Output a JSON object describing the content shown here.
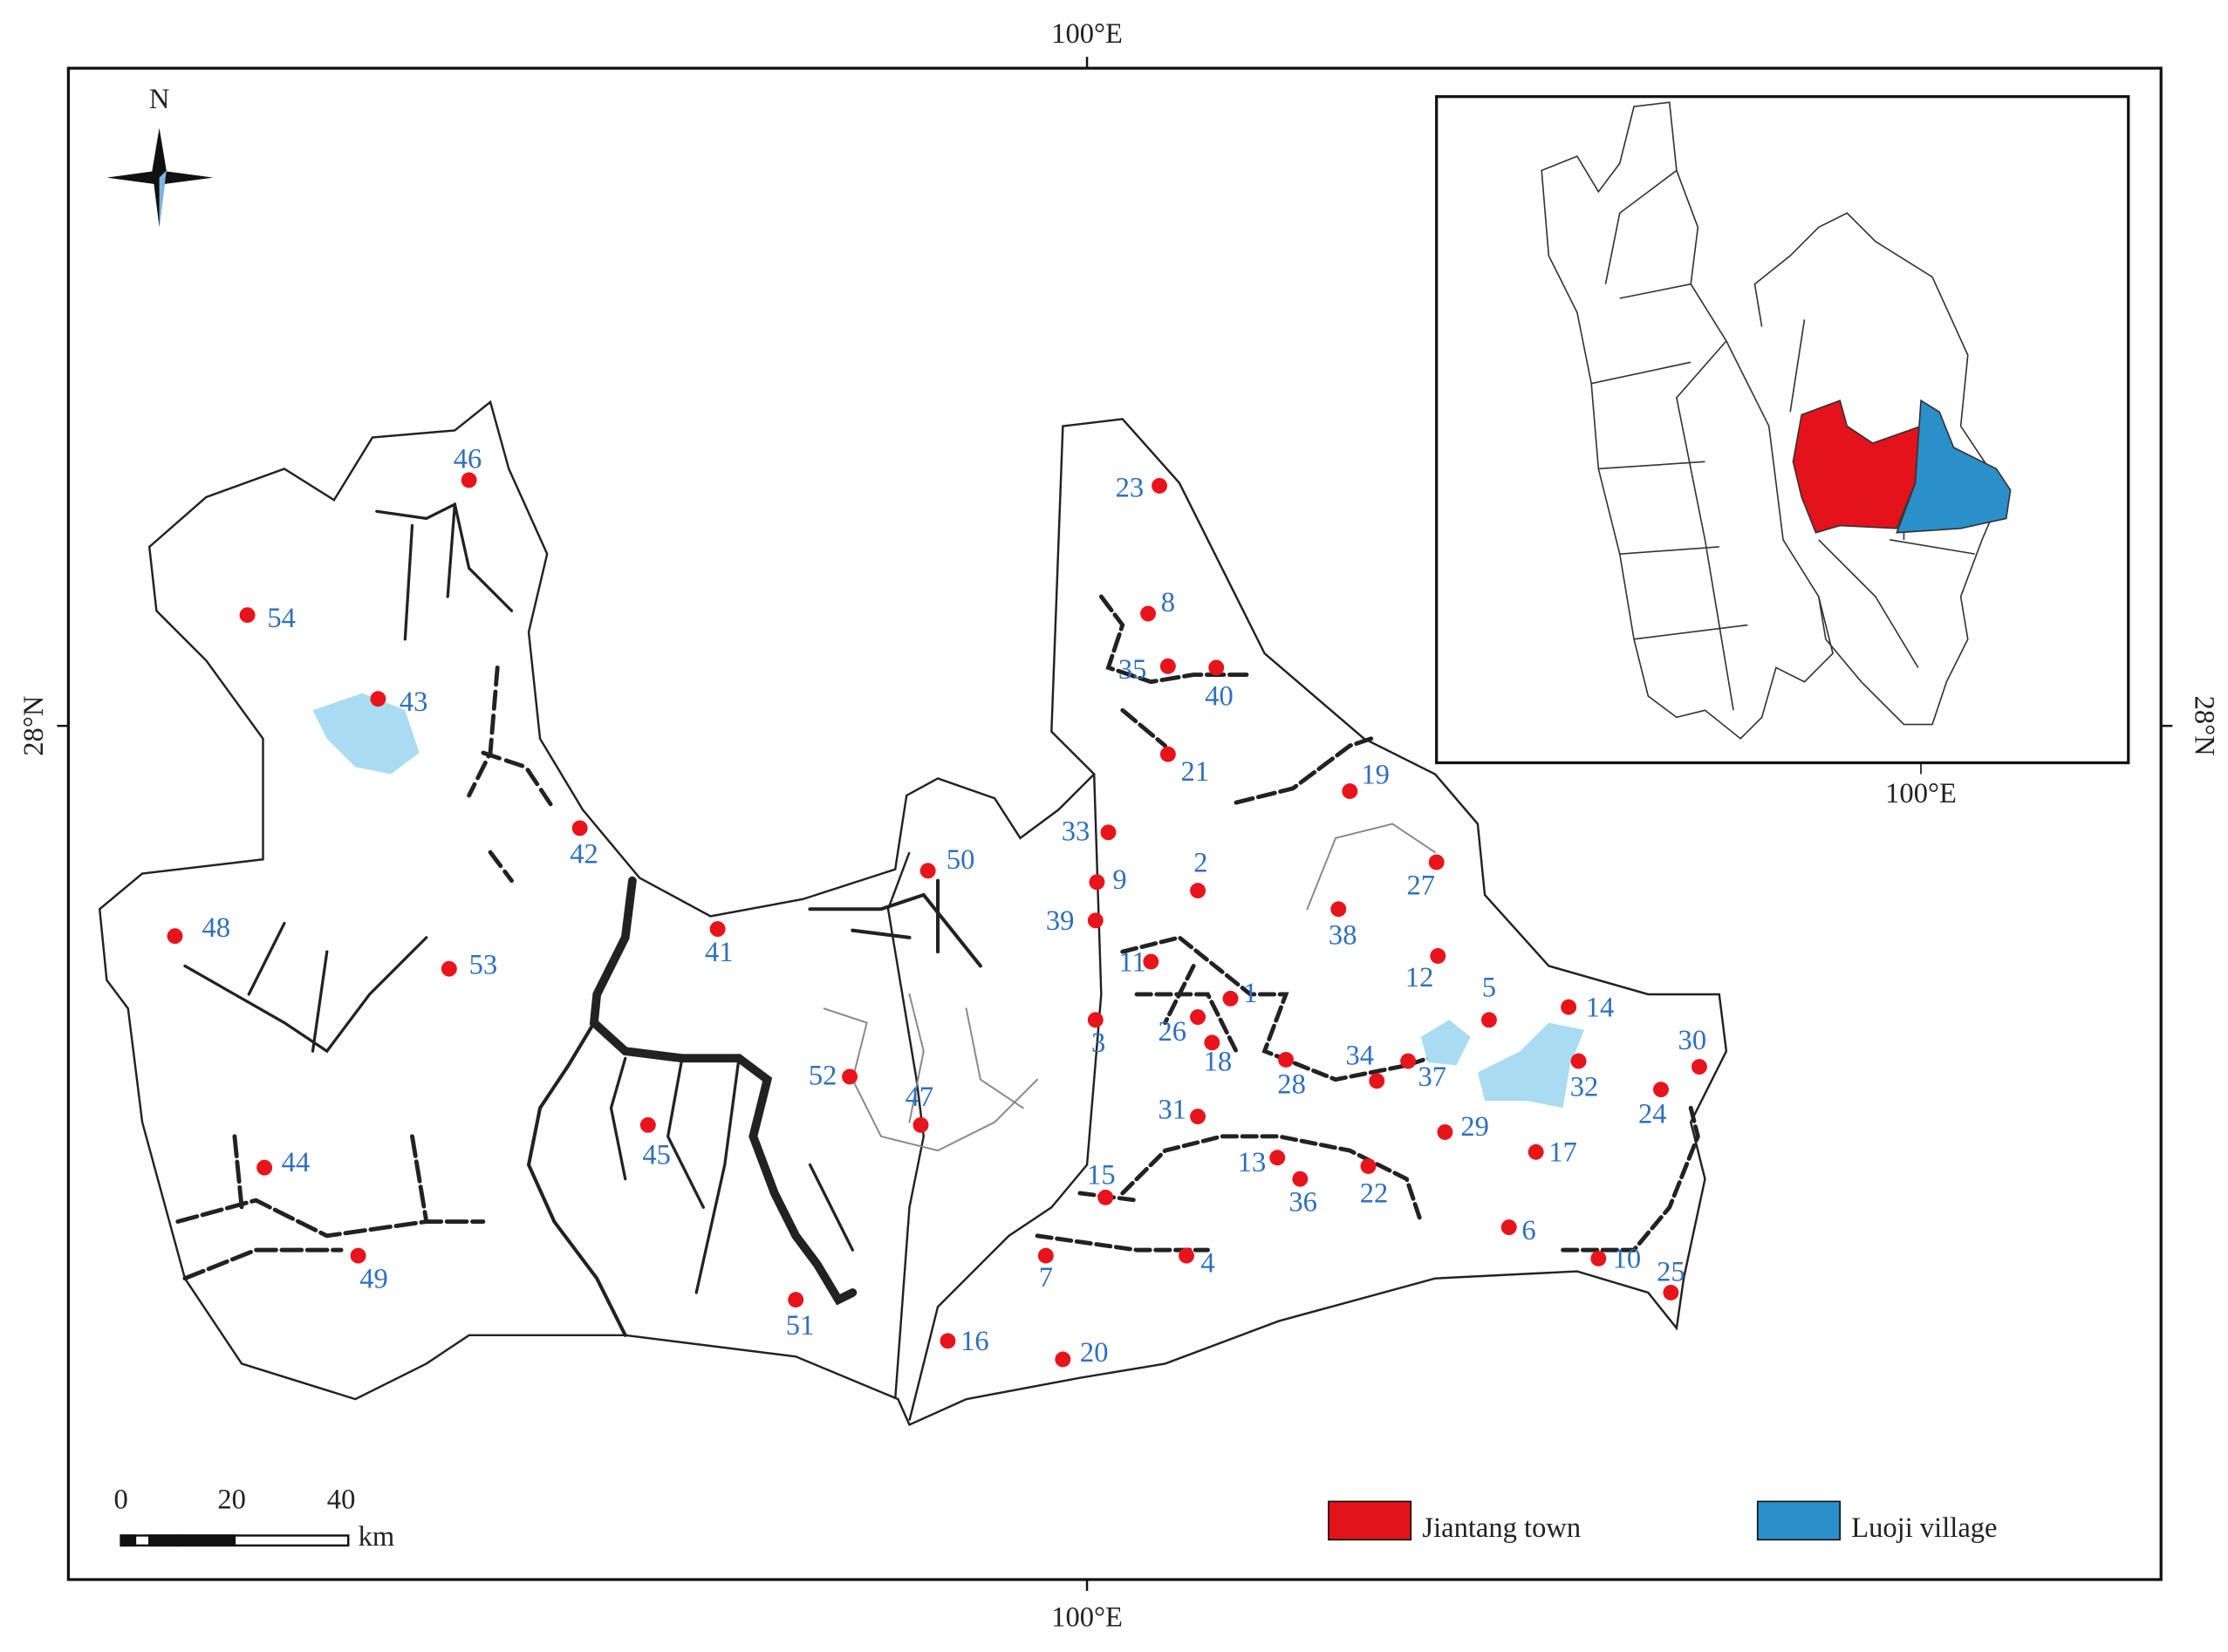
{
  "map": {
    "axis_labels": {
      "top": "100°E",
      "bottom": "100°E",
      "left": "28°N",
      "right": "28°N",
      "inset": "100°E"
    },
    "north": "N",
    "scale": {
      "ticks": [
        "0",
        "20",
        "40"
      ],
      "unit": "km"
    },
    "legend": [
      {
        "label": "Jiantang town",
        "color": "#e3121b"
      },
      {
        "label": "Luoji village",
        "color": "#2b8fc9"
      }
    ],
    "sites": [
      "46",
      "23",
      "54",
      "8",
      "35",
      "40",
      "43",
      "21",
      "19",
      "42",
      "33",
      "27",
      "50",
      "9",
      "2",
      "38",
      "39",
      "41",
      "48",
      "11",
      "12",
      "53",
      "1",
      "5",
      "14",
      "3",
      "26",
      "18",
      "28",
      "37",
      "34",
      "32",
      "30",
      "52",
      "24",
      "47",
      "31",
      "45",
      "29",
      "17",
      "13",
      "22",
      "44",
      "36",
      "15",
      "6",
      "7",
      "4",
      "49",
      "10",
      "25",
      "51",
      "16",
      "20"
    ]
  }
}
